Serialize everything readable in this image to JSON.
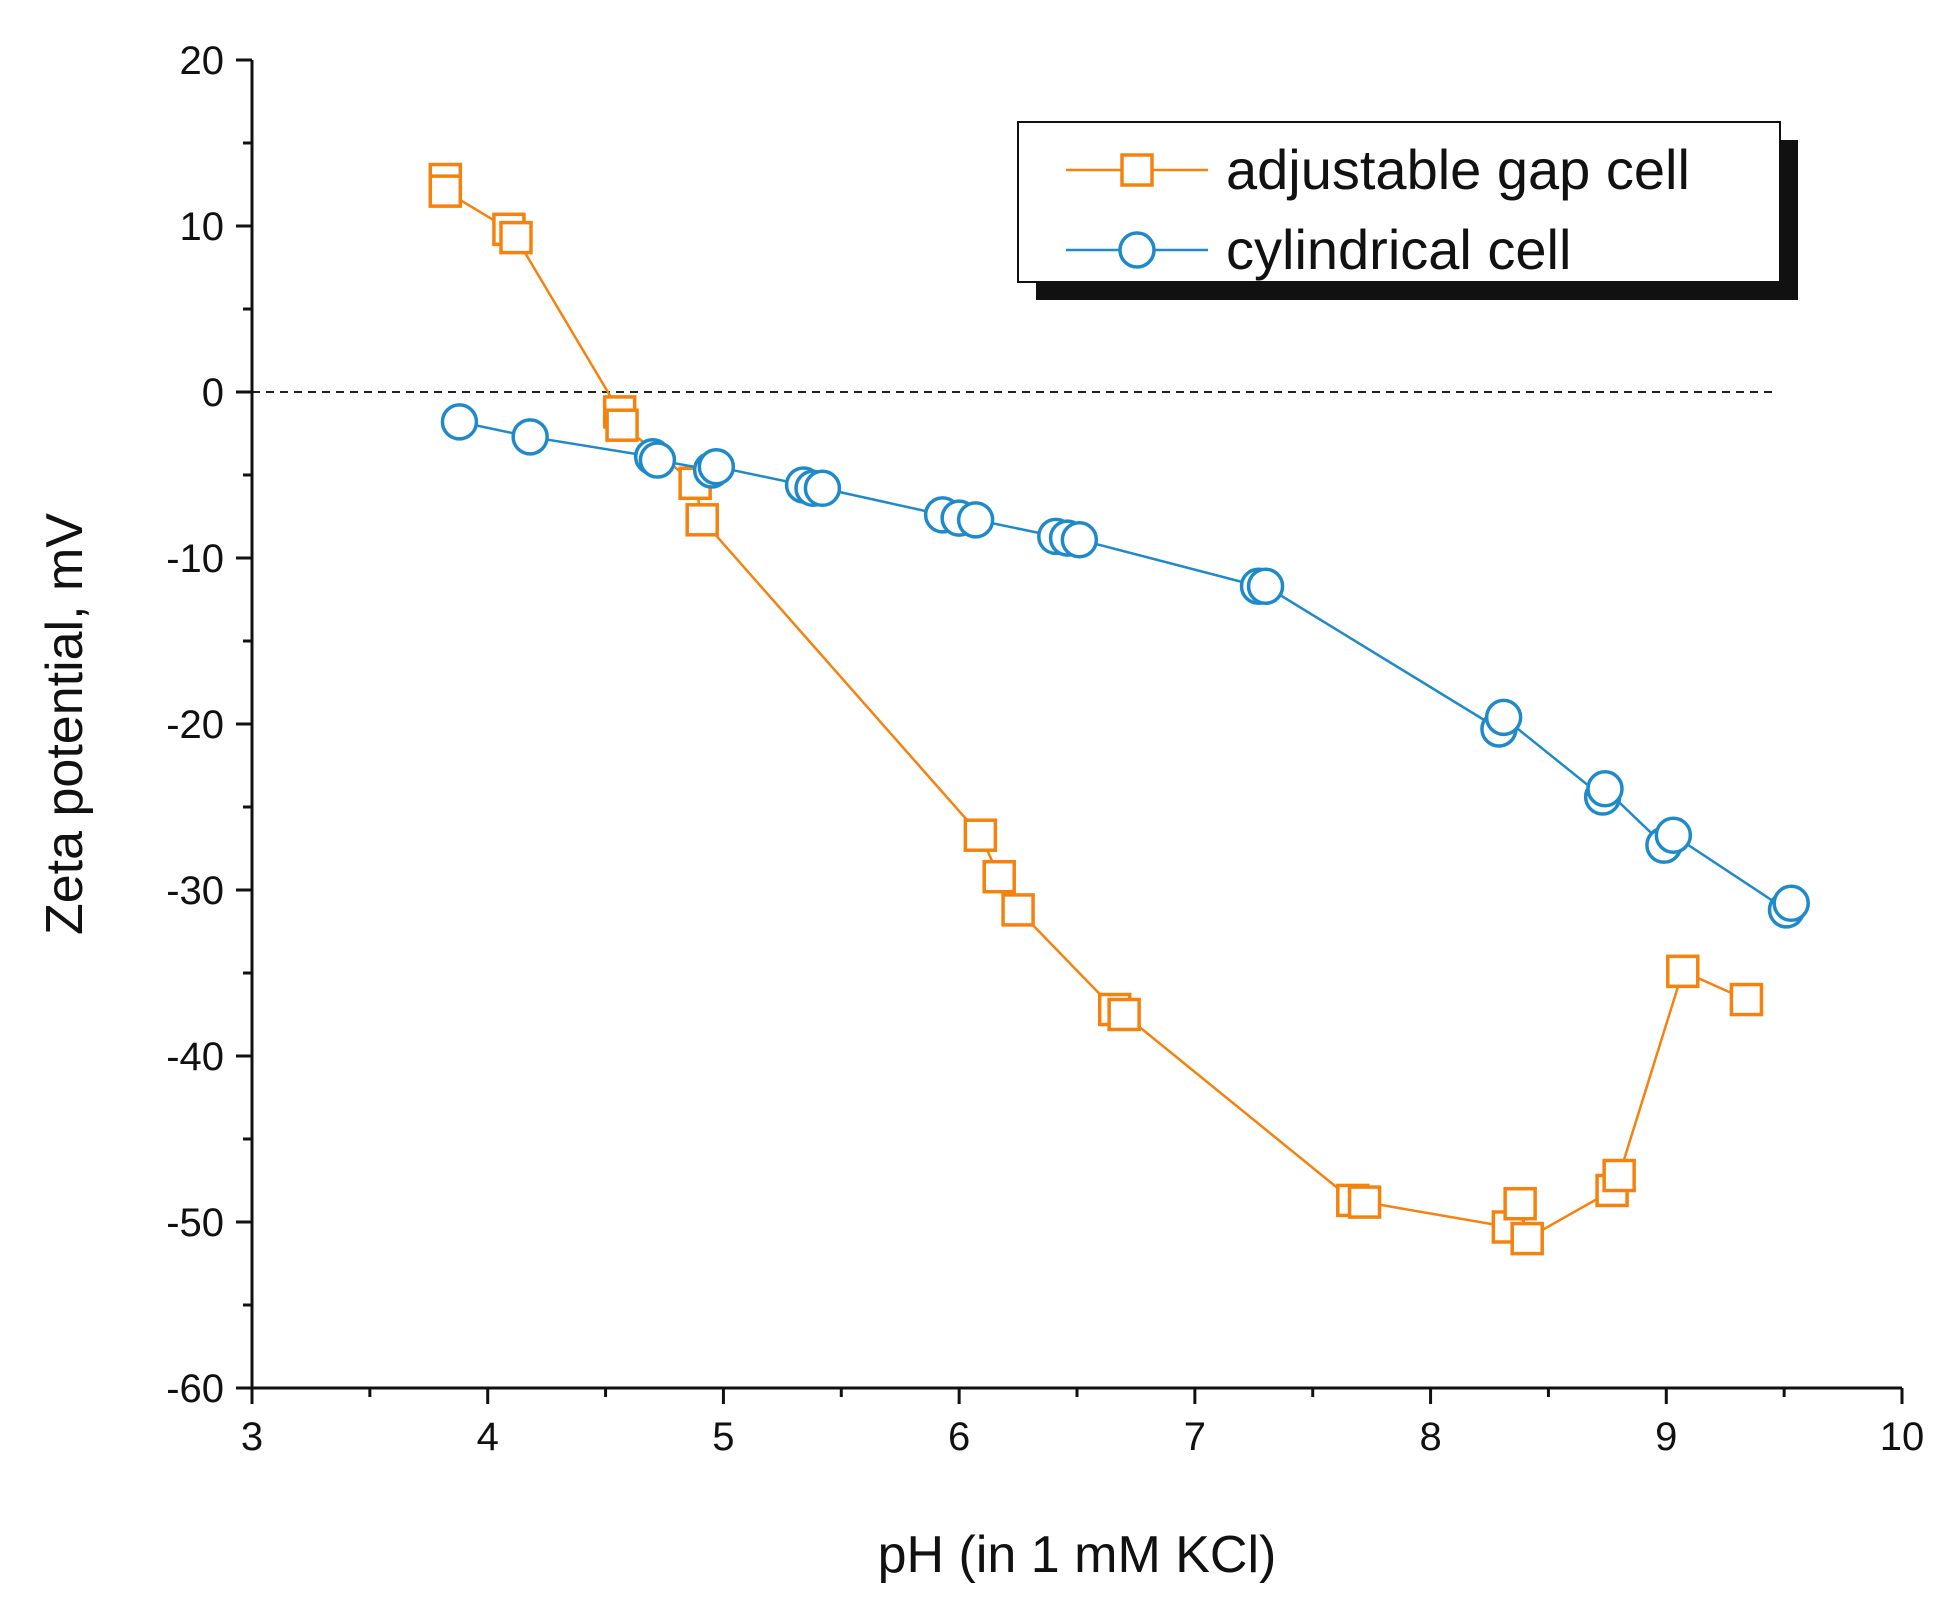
{
  "chart_data": {
    "type": "line",
    "title": "",
    "xlabel": "pH (in 1 mM KCl)",
    "ylabel": "Zeta potential, mV",
    "xlim": [
      3,
      10
    ],
    "ylim": [
      -60,
      20
    ],
    "xticks": [
      3,
      4,
      5,
      6,
      7,
      8,
      9,
      10
    ],
    "yticks": [
      20,
      10,
      0,
      -10,
      -20,
      -30,
      -40,
      -50,
      -60
    ],
    "zero_line": true,
    "legend_position": "top-right",
    "series": [
      {
        "name": "adjustable gap cell",
        "color": "#f5820f",
        "marker": "square",
        "x": [
          3.82,
          3.82,
          4.09,
          4.12,
          4.56,
          4.57,
          4.88,
          4.91,
          6.09,
          6.17,
          6.25,
          6.66,
          6.7,
          7.67,
          7.72,
          8.33,
          8.38,
          8.41,
          8.77,
          8.8,
          9.07,
          9.34
        ],
        "y": [
          12.8,
          12.1,
          9.8,
          9.3,
          -1.2,
          -2.0,
          -5.5,
          -7.7,
          -26.7,
          -29.2,
          -31.2,
          -37.2,
          -37.5,
          -48.7,
          -48.8,
          -50.3,
          -48.9,
          -51.0,
          -48.1,
          -47.2,
          -34.9,
          -36.6
        ]
      },
      {
        "name": "cylindrical cell",
        "color": "#1f8ac9",
        "marker": "circle",
        "x": [
          3.88,
          4.18,
          4.7,
          4.72,
          4.95,
          4.97,
          5.34,
          5.38,
          5.42,
          5.93,
          6.0,
          6.07,
          6.41,
          6.46,
          6.51,
          7.27,
          7.3,
          8.29,
          8.31,
          8.73,
          8.74,
          8.99,
          9.03,
          9.51,
          9.53
        ],
        "y": [
          -1.8,
          -2.7,
          -3.9,
          -4.1,
          -4.7,
          -4.5,
          -5.6,
          -5.8,
          -5.8,
          -7.4,
          -7.6,
          -7.7,
          -8.7,
          -8.8,
          -8.9,
          -11.7,
          -11.7,
          -20.3,
          -19.6,
          -24.4,
          -23.9,
          -27.3,
          -26.7,
          -31.2,
          -30.8
        ]
      }
    ]
  }
}
